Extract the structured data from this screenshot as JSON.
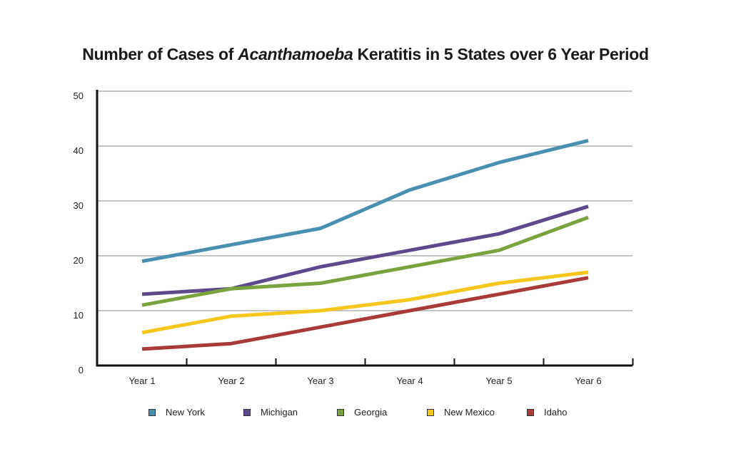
{
  "chart_data": {
    "type": "line",
    "title_parts": [
      "Number of Cases of ",
      "Acanthamoeba",
      " Keratitis in 5 States over 6 Year Period"
    ],
    "title": "Number of Cases of Acanthamoeba Keratitis in 5 States over 6 Year Period",
    "xlabel": "",
    "ylabel": "",
    "categories": [
      "Year 1",
      "Year 2",
      "Year 3",
      "Year 4",
      "Year 5",
      "Year 6"
    ],
    "ylim": [
      0,
      50
    ],
    "yticks": [
      0,
      10,
      20,
      30,
      40,
      50
    ],
    "grid": true,
    "legend_position": "bottom",
    "series": [
      {
        "name": "New York",
        "color": "#4a8fad",
        "values": [
          19,
          22,
          25,
          32,
          37,
          41
        ]
      },
      {
        "name": "Michigan",
        "color": "#5e4a8a",
        "values": [
          13,
          14,
          18,
          21,
          24,
          29
        ]
      },
      {
        "name": "Georgia",
        "color": "#7aa23e",
        "values": [
          11,
          14,
          15,
          18,
          21,
          27
        ]
      },
      {
        "name": "New Mexico",
        "color": "#f7c61d",
        "values": [
          6,
          9,
          10,
          12,
          15,
          17
        ]
      },
      {
        "name": "Idaho",
        "color": "#a93a39",
        "values": [
          3,
          4,
          7,
          10,
          13,
          16
        ]
      }
    ]
  }
}
